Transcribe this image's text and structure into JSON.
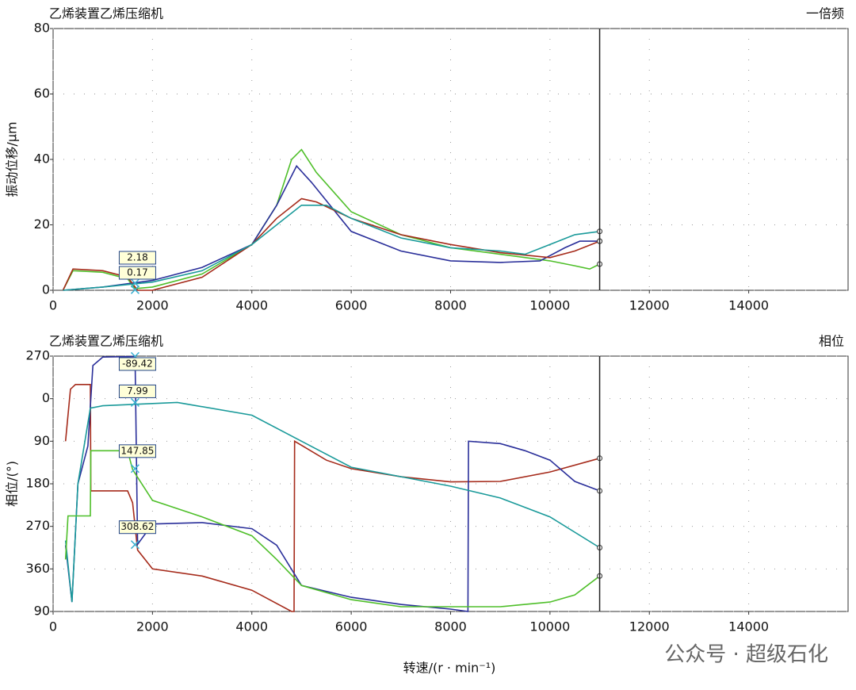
{
  "watermark": "公众号 · 超级石化",
  "chart_data": [
    {
      "type": "line",
      "title": "乙烯装置乙烯压缩机",
      "title_right": "一倍频",
      "ylabel": "振动位移/μm",
      "xlim": [
        0,
        16000
      ],
      "xticks": [
        0,
        2000,
        4000,
        6000,
        8000,
        10000,
        12000,
        14000
      ],
      "ylim": [
        0,
        80
      ],
      "yticks": [
        0,
        20,
        40,
        60,
        80
      ],
      "grid": true,
      "cursor_x": 11000,
      "series": [
        {
          "color": "#4fbf2a",
          "x": [
            200,
            400,
            1000,
            1500,
            1650,
            2000,
            3000,
            4000,
            4500,
            4800,
            5000,
            5300,
            6000,
            7000,
            8000,
            9000,
            10000,
            10500,
            10800,
            11000
          ],
          "values": [
            0,
            6,
            5.5,
            3.5,
            0.5,
            1,
            5,
            14,
            26,
            40,
            43,
            36,
            24,
            17,
            13,
            11,
            9,
            7.5,
            6.5,
            8
          ]
        },
        {
          "color": "#2a2f9a",
          "x": [
            200,
            1000,
            2000,
            3000,
            4000,
            4500,
            4900,
            5200,
            6000,
            7000,
            8000,
            9000,
            9800,
            10300,
            10600,
            11000
          ],
          "values": [
            0,
            1,
            3,
            7,
            14,
            26,
            38,
            33,
            18,
            12,
            9,
            8.5,
            9,
            13,
            15,
            15
          ]
        },
        {
          "color": "#a52a1a",
          "x": [
            200,
            400,
            1000,
            1500,
            1700,
            2000,
            3000,
            4000,
            4500,
            5000,
            5300,
            6000,
            7000,
            8000,
            9000,
            10000,
            10500,
            11000
          ],
          "values": [
            0,
            6.5,
            6,
            4,
            0,
            0,
            4,
            14,
            22,
            28,
            27,
            22,
            17,
            14,
            11.5,
            10,
            12,
            15
          ]
        },
        {
          "color": "#1a9a9a",
          "x": [
            200,
            1000,
            2000,
            3000,
            4000,
            4500,
            5000,
            5500,
            6000,
            7000,
            8000,
            9000,
            9500,
            10000,
            10500,
            11000
          ],
          "values": [
            0,
            1,
            2.5,
            6,
            14,
            20,
            26,
            26,
            22,
            16,
            13,
            12,
            11,
            14,
            17,
            18
          ]
        }
      ],
      "annotations": [
        {
          "text": "2.18",
          "x": 1650,
          "y": 2.18
        },
        {
          "text": "0.17",
          "x": 1650,
          "y": 0.17
        }
      ]
    },
    {
      "type": "line",
      "title": "乙烯装置乙烯压缩机",
      "title_right": "相位",
      "ylabel": "相位/(°)",
      "xlabel": "转速/(r · min⁻¹)",
      "xlim": [
        0,
        16000
      ],
      "xticks": [
        0,
        2000,
        4000,
        6000,
        8000,
        10000,
        12000,
        14000
      ],
      "ylim": [
        -90,
        450
      ],
      "y_inverted": true,
      "yticks": [
        {
          "value": -90,
          "label": "270"
        },
        0,
        90,
        180,
        270,
        360,
        {
          "value": 450,
          "label": "90"
        }
      ],
      "grid": true,
      "cursor_x": 11000,
      "series": [
        {
          "color": "#a52a1a",
          "x": [
            250,
            350,
            450,
            700,
            750,
            760,
            1500,
            1600,
            1700,
            2000,
            3000,
            4000,
            4800,
            4850,
            4860,
            5500,
            6000,
            7000,
            8000,
            9000,
            10000,
            11000
          ],
          "values": [
            90,
            -20,
            -30,
            -30,
            -30,
            195,
            195,
            220,
            320,
            360,
            375,
            405,
            450,
            450,
            90,
            130,
            148,
            165,
            176,
            175,
            155,
            126
          ]
        },
        {
          "color": "#2a2f9a",
          "x": [
            250,
            380,
            500,
            700,
            800,
            1000,
            1600,
            1650,
            1700,
            2000,
            3000,
            4000,
            4500,
            5000,
            6000,
            7000,
            8000,
            8350,
            8360,
            9000,
            9500,
            10000,
            10500,
            11000
          ],
          "values": [
            310,
            430,
            180,
            100,
            -70,
            -88,
            -89,
            -89,
            308,
            265,
            262,
            275,
            310,
            395,
            420,
            435,
            445,
            450,
            90,
            95,
            110,
            130,
            175,
            195
          ]
        },
        {
          "color": "#1a9a9a",
          "x": [
            250,
            380,
            500,
            750,
            1000,
            2500,
            4000,
            5000,
            6000,
            8000,
            9000,
            10000,
            11000
          ],
          "values": [
            300,
            430,
            180,
            20,
            15,
            8,
            35,
            90,
            145,
            185,
            210,
            250,
            315
          ]
        },
        {
          "color": "#4fbf2a",
          "x": [
            250,
            300,
            750,
            760,
            1500,
            1600,
            2000,
            3000,
            4000,
            4500,
            5000,
            6000,
            7000,
            8000,
            9000,
            10000,
            10500,
            11000
          ],
          "values": [
            340,
            248,
            248,
            110,
            110,
            150,
            215,
            250,
            290,
            340,
            395,
            425,
            440,
            440,
            440,
            430,
            415,
            375
          ]
        }
      ],
      "annotations": [
        {
          "text": "-89.42",
          "x": 1650,
          "y": -89.42
        },
        {
          "text": "7.99",
          "x": 1650,
          "y": 7.99
        },
        {
          "text": "147.85",
          "x": 1650,
          "y": 147.85
        },
        {
          "text": "308.62",
          "x": 1650,
          "y": 308.62
        }
      ]
    }
  ]
}
